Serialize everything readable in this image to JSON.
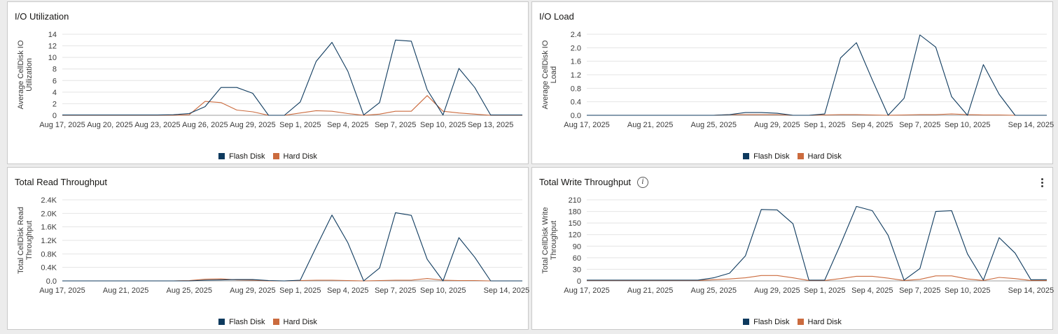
{
  "legend": {
    "flash": "Flash Disk",
    "hard": "Hard Disk",
    "flash_color": "#0e3a5e",
    "hard_color": "#cb6b3e"
  },
  "chart_data": [
    {
      "type": "line",
      "title": "I/O Utilization",
      "ylabel": "Average CellDisk IO Utilization",
      "ylim": [
        0,
        14
      ],
      "yticks": [
        0,
        2,
        4,
        6,
        8,
        10,
        12,
        14
      ],
      "ytick_labels": [
        "0",
        "2",
        "4",
        "6",
        "8",
        "10",
        "12",
        "14"
      ],
      "x_dates": [
        "Aug 17, 2025",
        "Aug 18, 2025",
        "Aug 19, 2025",
        "Aug 20, 2025",
        "Aug 21, 2025",
        "Aug 22, 2025",
        "Aug 23, 2025",
        "Aug 24, 2025",
        "Aug 25, 2025",
        "Aug 26, 2025",
        "Aug 27, 2025",
        "Aug 28, 2025",
        "Aug 29, 2025",
        "Aug 30, 2025",
        "Aug 31, 2025",
        "Sep 1, 2025",
        "Sep 2, 2025",
        "Sep 3, 2025",
        "Sep 4, 2025",
        "Sep 5, 2025",
        "Sep 6, 2025",
        "Sep 7, 2025",
        "Sep 8, 2025",
        "Sep 9, 2025",
        "Sep 10, 2025",
        "Sep 11, 2025",
        "Sep 12, 2025",
        "Sep 13, 2025",
        "Sep 14, 2025",
        "Sep 15, 2025"
      ],
      "xtick_labels": [
        "Aug 17, 2025",
        "Aug 20, 2025",
        "Aug 23, 2025",
        "Aug 26, 2025",
        "Aug 29, 2025",
        "Sep 1, 2025",
        "Sep 4, 2025",
        "Sep 7, 2025",
        "Sep 10, 2025",
        "Sep 13, 2025"
      ],
      "series": [
        {
          "name": "Flash Disk",
          "values": [
            0.05,
            0.05,
            0.05,
            0.05,
            0.05,
            0.05,
            0.05,
            0.1,
            0.3,
            1.5,
            4.8,
            4.8,
            3.8,
            0,
            0,
            2.3,
            9.3,
            12.6,
            7.6,
            0.05,
            2.2,
            13,
            12.8,
            4.4,
            0.05,
            8.1,
            4.8,
            0.05,
            0.05,
            0.05
          ]
        },
        {
          "name": "Hard Disk",
          "values": [
            0,
            0,
            0,
            0,
            0,
            0,
            0,
            0,
            0.1,
            2.4,
            2.2,
            0.9,
            0.6,
            0,
            0,
            0.4,
            0.8,
            0.7,
            0.3,
            0,
            0.2,
            0.7,
            0.7,
            3.4,
            0.7,
            0.4,
            0.2,
            0,
            0,
            0
          ]
        }
      ]
    },
    {
      "type": "line",
      "title": "I/O Load",
      "ylabel": "Average CellDisk IO Load",
      "ylim": [
        0,
        2.4
      ],
      "yticks": [
        0,
        0.4,
        0.8,
        1.2,
        1.6,
        2.0,
        2.4
      ],
      "ytick_labels": [
        "0.0",
        "0.4",
        "0.8",
        "1.2",
        "1.6",
        "2.0",
        "2.4"
      ],
      "x_dates": [
        "Aug 17, 2025",
        "Aug 18, 2025",
        "Aug 19, 2025",
        "Aug 20, 2025",
        "Aug 21, 2025",
        "Aug 22, 2025",
        "Aug 23, 2025",
        "Aug 24, 2025",
        "Aug 25, 2025",
        "Aug 26, 2025",
        "Aug 27, 2025",
        "Aug 28, 2025",
        "Aug 29, 2025",
        "Aug 30, 2025",
        "Aug 31, 2025",
        "Sep 1, 2025",
        "Sep 2, 2025",
        "Sep 3, 2025",
        "Sep 4, 2025",
        "Sep 5, 2025",
        "Sep 6, 2025",
        "Sep 7, 2025",
        "Sep 8, 2025",
        "Sep 9, 2025",
        "Sep 10, 2025",
        "Sep 11, 2025",
        "Sep 12, 2025",
        "Sep 13, 2025",
        "Sep 14, 2025",
        "Sep 15, 2025"
      ],
      "xtick_labels": [
        "Aug 17, 2025",
        "Aug 21, 2025",
        "Aug 25, 2025",
        "Aug 29, 2025",
        "Sep 1, 2025",
        "Sep 4, 2025",
        "Sep 7, 2025",
        "Sep 10, 2025",
        "Sep 14, 2025"
      ],
      "series": [
        {
          "name": "Flash Disk",
          "values": [
            0,
            0,
            0,
            0,
            0,
            0,
            0,
            0,
            0,
            0.02,
            0.08,
            0.08,
            0.06,
            0,
            0,
            0.04,
            1.7,
            2.15,
            1.05,
            0,
            0.5,
            2.38,
            2.02,
            0.55,
            0,
            1.5,
            0.62,
            0,
            0,
            0
          ]
        },
        {
          "name": "Hard Disk",
          "values": [
            0,
            0,
            0,
            0,
            0,
            0,
            0,
            0,
            0,
            0.02,
            0.02,
            0.02,
            0.02,
            0,
            0,
            0.01,
            0.02,
            0.02,
            0.01,
            0,
            0.01,
            0.02,
            0.02,
            0.04,
            0.02,
            0.01,
            0.01,
            0,
            0,
            0
          ]
        }
      ]
    },
    {
      "type": "line",
      "title": "Total Read Throughput",
      "ylabel": "Total CellDisk Read Throughput",
      "ylim": [
        0,
        2400
      ],
      "yticks": [
        0,
        400,
        800,
        1200,
        1600,
        2000,
        2400
      ],
      "ytick_labels": [
        "0.0",
        "0.4K",
        "0.8K",
        "1.2K",
        "1.6K",
        "2.0K",
        "2.4K"
      ],
      "x_dates": [
        "Aug 17, 2025",
        "Aug 18, 2025",
        "Aug 19, 2025",
        "Aug 20, 2025",
        "Aug 21, 2025",
        "Aug 22, 2025",
        "Aug 23, 2025",
        "Aug 24, 2025",
        "Aug 25, 2025",
        "Aug 26, 2025",
        "Aug 27, 2025",
        "Aug 28, 2025",
        "Aug 29, 2025",
        "Aug 30, 2025",
        "Aug 31, 2025",
        "Sep 1, 2025",
        "Sep 2, 2025",
        "Sep 3, 2025",
        "Sep 4, 2025",
        "Sep 5, 2025",
        "Sep 6, 2025",
        "Sep 7, 2025",
        "Sep 8, 2025",
        "Sep 9, 2025",
        "Sep 10, 2025",
        "Sep 11, 2025",
        "Sep 12, 2025",
        "Sep 13, 2025",
        "Sep 14, 2025",
        "Sep 15, 2025"
      ],
      "xtick_labels": [
        "Aug 17, 2025",
        "Aug 21, 2025",
        "Aug 25, 2025",
        "Aug 29, 2025",
        "Sep 1, 2025",
        "Sep 4, 2025",
        "Sep 7, 2025",
        "Sep 10, 2025",
        "Sep 14, 2025"
      ],
      "series": [
        {
          "name": "Flash Disk",
          "values": [
            0,
            0,
            0,
            0,
            0,
            0,
            0,
            0,
            0,
            20,
            30,
            40,
            40,
            10,
            0,
            20,
            1000,
            1950,
            1130,
            0,
            380,
            2020,
            1940,
            640,
            0,
            1280,
            700,
            0,
            0,
            0
          ]
        },
        {
          "name": "Hard Disk",
          "values": [
            0,
            0,
            0,
            0,
            0,
            0,
            0,
            0,
            10,
            50,
            60,
            30,
            20,
            0,
            0,
            10,
            20,
            20,
            10,
            0,
            10,
            20,
            20,
            70,
            20,
            10,
            10,
            0,
            0,
            0
          ]
        }
      ]
    },
    {
      "type": "line",
      "title": "Total Write Throughput",
      "ylabel": "Total CellDisk Write Throughput",
      "ylim": [
        0,
        210
      ],
      "yticks": [
        0,
        30,
        60,
        90,
        120,
        150,
        180,
        210
      ],
      "ytick_labels": [
        "0",
        "30",
        "60",
        "90",
        "120",
        "150",
        "180",
        "210"
      ],
      "x_dates": [
        "Aug 17, 2025",
        "Aug 18, 2025",
        "Aug 19, 2025",
        "Aug 20, 2025",
        "Aug 21, 2025",
        "Aug 22, 2025",
        "Aug 23, 2025",
        "Aug 24, 2025",
        "Aug 25, 2025",
        "Aug 26, 2025",
        "Aug 27, 2025",
        "Aug 28, 2025",
        "Aug 29, 2025",
        "Aug 30, 2025",
        "Aug 31, 2025",
        "Sep 1, 2025",
        "Sep 2, 2025",
        "Sep 3, 2025",
        "Sep 4, 2025",
        "Sep 5, 2025",
        "Sep 6, 2025",
        "Sep 7, 2025",
        "Sep 8, 2025",
        "Sep 9, 2025",
        "Sep 10, 2025",
        "Sep 11, 2025",
        "Sep 12, 2025",
        "Sep 13, 2025",
        "Sep 14, 2025",
        "Sep 15, 2025"
      ],
      "xtick_labels": [
        "Aug 17, 2025",
        "Aug 21, 2025",
        "Aug 25, 2025",
        "Aug 29, 2025",
        "Sep 1, 2025",
        "Sep 4, 2025",
        "Sep 7, 2025",
        "Sep 10, 2025",
        "Sep 14, 2025"
      ],
      "series": [
        {
          "name": "Flash Disk",
          "values": [
            2,
            2,
            2,
            2,
            2,
            2,
            2,
            2,
            8,
            20,
            65,
            185,
            184,
            148,
            2,
            2,
            95,
            193,
            182,
            118,
            2,
            32,
            180,
            182,
            70,
            2,
            112,
            72,
            3,
            3
          ]
        },
        {
          "name": "Hard Disk",
          "values": [
            1,
            1,
            1,
            1,
            1,
            1,
            1,
            1,
            3,
            5,
            8,
            14,
            14,
            8,
            1,
            1,
            6,
            12,
            12,
            7,
            1,
            4,
            13,
            13,
            5,
            1,
            9,
            6,
            1,
            1
          ]
        }
      ]
    }
  ]
}
